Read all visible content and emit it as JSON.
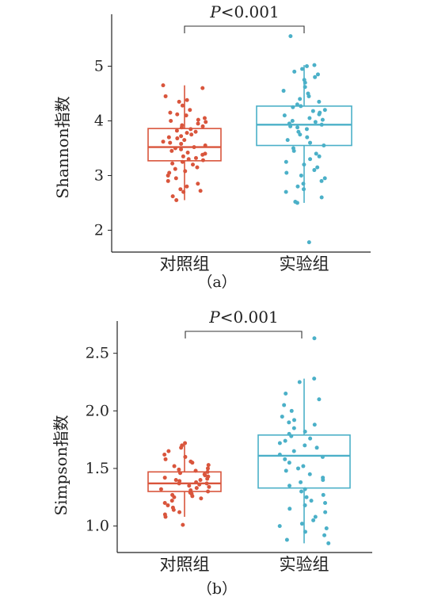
{
  "chart_data": [
    {
      "type": "box",
      "panel_label": "（a）",
      "ylabel": "Shannon指数",
      "categories": [
        "对照组",
        "实验组"
      ],
      "yticks": [
        2,
        3,
        4,
        5
      ],
      "ylim": [
        1.6,
        5.95
      ],
      "significance": {
        "italic": "P",
        "text": "<0.001"
      },
      "colors": [
        "#d9553c",
        "#4bb0c8"
      ],
      "grid": false,
      "series": [
        {
          "name": "对照组",
          "box": {
            "whisker_low": 2.55,
            "q1": 3.27,
            "median": 3.52,
            "q3": 3.86,
            "whisker_high": 4.65
          },
          "points": [
            4.65,
            4.6,
            4.45,
            4.38,
            4.35,
            4.28,
            4.2,
            4.15,
            4.12,
            4.1,
            4.05,
            4.02,
            4.0,
            3.98,
            3.95,
            3.92,
            3.9,
            3.88,
            3.85,
            3.82,
            3.8,
            3.78,
            3.75,
            3.72,
            3.7,
            3.68,
            3.65,
            3.62,
            3.6,
            3.58,
            3.55,
            3.52,
            3.5,
            3.48,
            3.45,
            3.42,
            3.4,
            3.38,
            3.35,
            3.32,
            3.3,
            3.28,
            3.25,
            3.22,
            3.2,
            3.15,
            3.12,
            3.08,
            3.05,
            3.0,
            2.95,
            2.9,
            2.85,
            2.8,
            2.75,
            2.72,
            2.7,
            2.62,
            2.55
          ]
        },
        {
          "name": "实验组",
          "box": {
            "whisker_low": 2.5,
            "q1": 3.55,
            "median": 3.93,
            "q3": 4.27,
            "whisker_high": 5.02
          },
          "points": [
            5.55,
            5.02,
            5.0,
            4.95,
            4.9,
            4.85,
            4.8,
            4.75,
            4.7,
            4.62,
            4.55,
            4.5,
            4.45,
            4.4,
            4.35,
            4.3,
            4.27,
            4.25,
            4.2,
            4.18,
            4.15,
            4.12,
            4.1,
            4.05,
            4.02,
            4.0,
            3.98,
            3.95,
            3.93,
            3.9,
            3.88,
            3.85,
            3.8,
            3.75,
            3.7,
            3.65,
            3.6,
            3.55,
            3.5,
            3.45,
            3.4,
            3.35,
            3.3,
            3.25,
            3.2,
            3.15,
            3.1,
            3.05,
            3.0,
            2.95,
            2.9,
            2.85,
            2.8,
            2.75,
            2.7,
            2.6,
            2.52,
            2.5,
            1.78
          ]
        }
      ]
    },
    {
      "type": "box",
      "panel_label": "（b）",
      "ylabel": "Simpson指数",
      "categories": [
        "对照组",
        "实验组"
      ],
      "yticks": [
        "1.0",
        "1.5",
        "2.0",
        "2.5"
      ],
      "ylim": [
        0.77,
        2.78
      ],
      "significance": {
        "italic": "P",
        "text": "<0.001"
      },
      "colors": [
        "#d9553c",
        "#4bb0c8"
      ],
      "grid": false,
      "series": [
        {
          "name": "对照组",
          "box": {
            "whisker_low": 1.08,
            "q1": 1.3,
            "median": 1.37,
            "q3": 1.47,
            "whisker_high": 1.72
          },
          "points": [
            1.72,
            1.7,
            1.68,
            1.65,
            1.62,
            1.6,
            1.58,
            1.56,
            1.55,
            1.53,
            1.52,
            1.5,
            1.49,
            1.48,
            1.47,
            1.46,
            1.45,
            1.44,
            1.43,
            1.42,
            1.41,
            1.4,
            1.4,
            1.39,
            1.38,
            1.37,
            1.37,
            1.36,
            1.35,
            1.34,
            1.33,
            1.32,
            1.31,
            1.3,
            1.29,
            1.28,
            1.27,
            1.26,
            1.25,
            1.24,
            1.22,
            1.2,
            1.18,
            1.16,
            1.14,
            1.12,
            1.1,
            1.08,
            1.01
          ]
        },
        {
          "name": "实验组",
          "box": {
            "whisker_low": 0.85,
            "q1": 1.33,
            "median": 1.61,
            "q3": 1.79,
            "whisker_high": 2.28
          },
          "points": [
            2.63,
            2.28,
            2.25,
            2.15,
            2.1,
            2.05,
            2.0,
            1.95,
            1.92,
            1.9,
            1.88,
            1.85,
            1.82,
            1.8,
            1.78,
            1.76,
            1.74,
            1.72,
            1.7,
            1.68,
            1.65,
            1.62,
            1.6,
            1.58,
            1.55,
            1.52,
            1.5,
            1.48,
            1.45,
            1.42,
            1.4,
            1.38,
            1.35,
            1.32,
            1.3,
            1.27,
            1.25,
            1.22,
            1.2,
            1.18,
            1.15,
            1.12,
            1.08,
            1.05,
            1.02,
            1.0,
            0.98,
            0.95,
            0.92,
            0.88,
            0.85
          ]
        }
      ]
    }
  ]
}
